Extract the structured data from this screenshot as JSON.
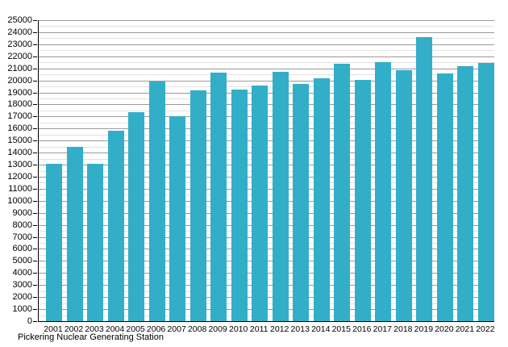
{
  "figure": {
    "caption": "Pickering Nuclear Generating Station"
  },
  "chart_data": {
    "type": "bar",
    "title": "",
    "caption": "Pickering Nuclear Generating Station",
    "categories": [
      "2001",
      "2002",
      "2003",
      "2004",
      "2005",
      "2006",
      "2007",
      "2008",
      "2009",
      "2010",
      "2011",
      "2012",
      "2013",
      "2014",
      "2015",
      "2016",
      "2017",
      "2018",
      "2019",
      "2020",
      "2021",
      "2022"
    ],
    "values": [
      13100,
      14500,
      13100,
      15850,
      17350,
      19900,
      17000,
      19200,
      20650,
      19250,
      19600,
      20700,
      19700,
      20150,
      21350,
      20050,
      21500,
      20850,
      23600,
      20600,
      21150,
      21450
    ],
    "xlabel": "",
    "ylabel": "",
    "ylim": [
      0,
      25000
    ],
    "y_tick_step": 1000,
    "y_minor_step": 500,
    "grid": "horizontal",
    "legend": "none",
    "bar_color": "#32aec8",
    "major_grid_color": "#9a9a9a",
    "minor_grid_color": "#e2e2e2",
    "axis_color": "#000000",
    "text_color": "#000000"
  }
}
